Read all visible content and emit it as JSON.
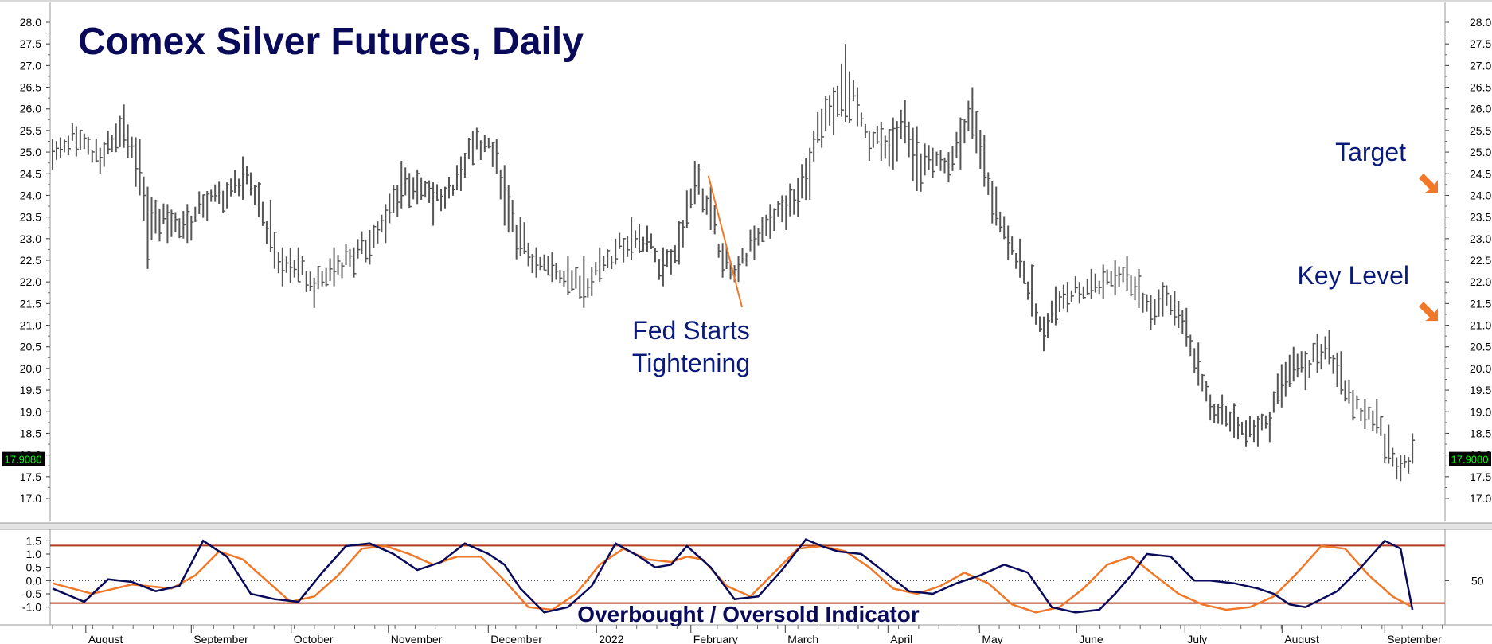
{
  "chart_data": [
    {
      "type": "ohlc",
      "title": "Comex Silver Futures, Daily",
      "ylim": [
        16.4,
        28.6
      ],
      "y_ticks": [
        "17.0",
        "17.5",
        "18.0",
        "18.5",
        "19.0",
        "19.5",
        "20.0",
        "20.5",
        "21.0",
        "21.5",
        "22.0",
        "22.5",
        "23.0",
        "23.5",
        "24.0",
        "24.5",
        "25.0",
        "25.5",
        "26.0",
        "26.5",
        "27.0",
        "27.5",
        "28.0"
      ],
      "y_tick_values": [
        17.0,
        17.5,
        18.0,
        18.5,
        19.0,
        19.5,
        20.0,
        20.5,
        21.0,
        21.5,
        22.0,
        22.5,
        23.0,
        23.5,
        24.0,
        24.5,
        25.0,
        25.5,
        26.0,
        26.5,
        27.0,
        27.5,
        28.0
      ],
      "last_price": "17.9080",
      "last_price_value": 17.908,
      "annotations": [
        {
          "text_lines": [
            "Fed Starts",
            "Tightening"
          ],
          "points_to": {
            "bar_index": 161,
            "price": 24.6
          }
        },
        {
          "text": "Target",
          "price": 24.1
        },
        {
          "text": "Key Level",
          "price": 21.1
        }
      ],
      "colors": {
        "bars": "#555555",
        "title": "#0a0a5a",
        "annotation": "#0a1a7a",
        "arrow": "#f07828",
        "price_flag_bg": "#000000",
        "price_flag_text": "#00ff00"
      },
      "series": [
        {
          "x": 0,
          "high": 25.3,
          "low": 24.6,
          "close": 24.9
        },
        {
          "x": 6,
          "high": 25.6,
          "low": 24.9,
          "close": 25.4
        },
        {
          "x": 12,
          "high": 25.1,
          "low": 24.5,
          "close": 24.9
        },
        {
          "x": 18,
          "high": 26.1,
          "low": 25.1,
          "close": 25.6
        },
        {
          "x": 22,
          "high": 25.3,
          "low": 24.0,
          "close": 24.3
        },
        {
          "x": 24,
          "high": 24.2,
          "low": 22.3,
          "close": 23.5
        },
        {
          "x": 29,
          "high": 23.8,
          "low": 22.9,
          "close": 23.4
        },
        {
          "x": 34,
          "high": 23.8,
          "low": 22.9,
          "close": 23.3
        },
        {
          "x": 39,
          "high": 24.1,
          "low": 23.4,
          "close": 23.9
        },
        {
          "x": 44,
          "high": 24.3,
          "low": 23.7,
          "close": 24.0
        },
        {
          "x": 48,
          "high": 24.9,
          "low": 23.9,
          "close": 24.4
        },
        {
          "x": 52,
          "high": 24.3,
          "low": 23.5,
          "close": 23.9
        },
        {
          "x": 55,
          "high": 23.9,
          "low": 22.7,
          "close": 23.0
        },
        {
          "x": 58,
          "high": 22.8,
          "low": 21.9,
          "close": 22.3
        },
        {
          "x": 62,
          "high": 22.8,
          "low": 22.0,
          "close": 22.4
        },
        {
          "x": 66,
          "high": 22.1,
          "low": 21.4,
          "close": 21.8
        },
        {
          "x": 71,
          "high": 22.8,
          "low": 21.9,
          "close": 22.4
        },
        {
          "x": 76,
          "high": 22.8,
          "low": 22.1,
          "close": 22.6
        },
        {
          "x": 80,
          "high": 23.2,
          "low": 22.4,
          "close": 22.9
        },
        {
          "x": 84,
          "high": 23.8,
          "low": 22.9,
          "close": 23.4
        },
        {
          "x": 88,
          "high": 24.8,
          "low": 23.7,
          "close": 24.3
        },
        {
          "x": 92,
          "high": 24.6,
          "low": 23.8,
          "close": 24.2
        },
        {
          "x": 96,
          "high": 24.3,
          "low": 23.3,
          "close": 23.9
        },
        {
          "x": 99,
          "high": 24.2,
          "low": 23.7,
          "close": 24.0
        },
        {
          "x": 103,
          "high": 24.9,
          "low": 24.1,
          "close": 24.6
        },
        {
          "x": 106,
          "high": 25.5,
          "low": 24.7,
          "close": 25.2
        },
        {
          "x": 109,
          "high": 25.4,
          "low": 25.0,
          "close": 25.2
        },
        {
          "x": 112,
          "high": 25.3,
          "low": 24.5,
          "close": 24.8
        },
        {
          "x": 114,
          "high": 24.7,
          "low": 23.3,
          "close": 23.6
        },
        {
          "x": 118,
          "high": 23.5,
          "low": 22.6,
          "close": 23.0
        },
        {
          "x": 122,
          "high": 22.8,
          "low": 22.1,
          "close": 22.4
        },
        {
          "x": 126,
          "high": 22.7,
          "low": 22.0,
          "close": 22.3
        },
        {
          "x": 130,
          "high": 22.6,
          "low": 21.7,
          "close": 22.1
        },
        {
          "x": 134,
          "high": 22.6,
          "low": 21.4,
          "close": 21.9
        },
        {
          "x": 138,
          "high": 22.8,
          "low": 22.0,
          "close": 22.4
        },
        {
          "x": 142,
          "high": 23.0,
          "low": 22.4,
          "close": 22.7
        },
        {
          "x": 146,
          "high": 23.5,
          "low": 22.5,
          "close": 23.0
        },
        {
          "x": 150,
          "high": 23.3,
          "low": 22.7,
          "close": 23.0
        },
        {
          "x": 154,
          "high": 22.8,
          "low": 21.9,
          "close": 22.2
        },
        {
          "x": 158,
          "high": 23.4,
          "low": 22.4,
          "close": 22.9
        },
        {
          "x": 162,
          "high": 24.8,
          "low": 23.8,
          "close": 24.4
        },
        {
          "x": 166,
          "high": 24.2,
          "low": 23.2,
          "close": 23.6
        },
        {
          "x": 169,
          "high": 22.9,
          "low": 22.1,
          "close": 22.5
        },
        {
          "x": 173,
          "high": 22.6,
          "low": 22.0,
          "close": 22.3
        },
        {
          "x": 177,
          "high": 23.3,
          "low": 22.5,
          "close": 23.0
        },
        {
          "x": 181,
          "high": 23.8,
          "low": 23.0,
          "close": 23.5
        },
        {
          "x": 185,
          "high": 24.0,
          "low": 23.2,
          "close": 23.7
        },
        {
          "x": 188,
          "high": 24.4,
          "low": 23.5,
          "close": 24.0
        },
        {
          "x": 191,
          "high": 25.1,
          "low": 23.9,
          "close": 24.8
        },
        {
          "x": 194,
          "high": 26.0,
          "low": 25.1,
          "close": 25.7
        },
        {
          "x": 197,
          "high": 26.5,
          "low": 25.4,
          "close": 26.0
        },
        {
          "x": 200,
          "high": 27.5,
          "low": 25.7,
          "close": 26.5
        },
        {
          "x": 203,
          "high": 26.5,
          "low": 25.6,
          "close": 26.2
        },
        {
          "x": 206,
          "high": 25.5,
          "low": 24.8,
          "close": 25.2
        },
        {
          "x": 209,
          "high": 25.7,
          "low": 24.8,
          "close": 25.3
        },
        {
          "x": 212,
          "high": 25.8,
          "low": 24.6,
          "close": 25.2
        },
        {
          "x": 215,
          "high": 26.2,
          "low": 25.2,
          "close": 25.8
        },
        {
          "x": 218,
          "high": 25.6,
          "low": 24.1,
          "close": 24.6
        },
        {
          "x": 222,
          "high": 25.1,
          "low": 24.4,
          "close": 24.8
        },
        {
          "x": 226,
          "high": 25.0,
          "low": 24.3,
          "close": 24.6
        },
        {
          "x": 229,
          "high": 25.8,
          "low": 24.6,
          "close": 25.4
        },
        {
          "x": 232,
          "high": 26.5,
          "low": 25.3,
          "close": 26.0
        },
        {
          "x": 235,
          "high": 25.4,
          "low": 24.2,
          "close": 24.5
        },
        {
          "x": 238,
          "high": 24.2,
          "low": 23.3,
          "close": 23.6
        },
        {
          "x": 241,
          "high": 23.3,
          "low": 22.5,
          "close": 22.9
        },
        {
          "x": 244,
          "high": 23.0,
          "low": 22.1,
          "close": 22.5
        },
        {
          "x": 247,
          "high": 22.4,
          "low": 21.2,
          "close": 21.6
        },
        {
          "x": 250,
          "high": 21.2,
          "low": 20.4,
          "close": 20.9
        },
        {
          "x": 253,
          "high": 21.9,
          "low": 21.0,
          "close": 21.5
        },
        {
          "x": 256,
          "high": 22.0,
          "low": 21.3,
          "close": 21.7
        },
        {
          "x": 259,
          "high": 22.0,
          "low": 21.5,
          "close": 21.8
        },
        {
          "x": 262,
          "high": 22.3,
          "low": 21.6,
          "close": 22.0
        },
        {
          "x": 265,
          "high": 22.4,
          "low": 21.6,
          "close": 22.0
        },
        {
          "x": 268,
          "high": 22.5,
          "low": 21.7,
          "close": 22.2
        },
        {
          "x": 271,
          "high": 22.6,
          "low": 21.8,
          "close": 22.2
        },
        {
          "x": 274,
          "high": 22.3,
          "low": 21.4,
          "close": 21.7
        },
        {
          "x": 277,
          "high": 21.7,
          "low": 20.9,
          "close": 21.3
        },
        {
          "x": 280,
          "high": 22.0,
          "low": 21.2,
          "close": 21.6
        },
        {
          "x": 283,
          "high": 21.8,
          "low": 21.0,
          "close": 21.4
        },
        {
          "x": 286,
          "high": 21.4,
          "low": 20.5,
          "close": 20.8
        },
        {
          "x": 289,
          "high": 20.6,
          "low": 19.6,
          "close": 19.9
        },
        {
          "x": 292,
          "high": 19.4,
          "low": 18.8,
          "close": 19.1
        },
        {
          "x": 295,
          "high": 19.4,
          "low": 18.7,
          "close": 19.0
        },
        {
          "x": 298,
          "high": 19.2,
          "low": 18.4,
          "close": 18.8
        },
        {
          "x": 301,
          "high": 18.8,
          "low": 18.2,
          "close": 18.5
        },
        {
          "x": 304,
          "high": 18.9,
          "low": 18.2,
          "close": 18.6
        },
        {
          "x": 307,
          "high": 19.0,
          "low": 18.3,
          "close": 18.7
        },
        {
          "x": 310,
          "high": 20.1,
          "low": 19.1,
          "close": 19.8
        },
        {
          "x": 313,
          "high": 20.5,
          "low": 19.7,
          "close": 20.1
        },
        {
          "x": 316,
          "high": 20.4,
          "low": 19.5,
          "close": 19.9
        },
        {
          "x": 319,
          "high": 20.8,
          "low": 19.9,
          "close": 20.4
        },
        {
          "x": 322,
          "high": 20.9,
          "low": 20.1,
          "close": 20.5
        },
        {
          "x": 325,
          "high": 20.4,
          "low": 19.4,
          "close": 19.8
        },
        {
          "x": 328,
          "high": 19.5,
          "low": 18.8,
          "close": 19.1
        },
        {
          "x": 331,
          "high": 19.3,
          "low": 18.6,
          "close": 19.0
        },
        {
          "x": 334,
          "high": 19.3,
          "low": 18.5,
          "close": 18.9
        },
        {
          "x": 337,
          "high": 18.7,
          "low": 17.8,
          "close": 18.1
        },
        {
          "x": 340,
          "high": 18.0,
          "low": 17.4,
          "close": 17.7
        },
        {
          "x": 343,
          "high": 18.5,
          "low": 17.8,
          "close": 17.9
        }
      ]
    },
    {
      "type": "line",
      "title": "Overbought / Oversold Indicator",
      "ylim": [
        -1.55,
        1.75
      ],
      "y_ticks": [
        "1.5",
        "1.0",
        "0.5",
        "0.0",
        "-0.5",
        "-1.0"
      ],
      "y_tick_values": [
        1.5,
        1.0,
        0.5,
        0.0,
        -0.5,
        -1.0
      ],
      "right_tick": {
        "label": "50",
        "value": 0.0
      },
      "overbought_line": 1.32,
      "oversold_line": -0.85,
      "colors": {
        "fast": "#0a0a5a",
        "slow": "#f07828",
        "bounds": "#b03a1a"
      },
      "series": [
        {
          "name": "fast",
          "x": [
            0,
            8,
            14,
            20,
            26,
            32,
            38,
            44,
            50,
            56,
            62,
            68,
            74,
            80,
            86,
            92,
            98,
            104,
            110,
            114,
            118,
            124,
            130,
            136,
            142,
            148,
            152,
            156,
            160,
            166,
            172,
            178,
            184,
            190,
            194,
            198,
            204,
            210,
            216,
            222,
            228,
            234,
            240,
            246,
            252,
            258,
            264,
            268,
            272,
            276,
            282,
            288,
            292,
            298,
            304,
            308,
            312,
            316,
            320,
            324,
            330,
            336,
            340,
            343
          ],
          "y": [
            -0.3,
            -0.8,
            0.05,
            -0.05,
            -0.4,
            -0.2,
            1.5,
            0.9,
            -0.5,
            -0.7,
            -0.8,
            0.3,
            1.3,
            1.4,
            1.0,
            0.4,
            0.7,
            1.4,
            1.0,
            0.6,
            -0.3,
            -1.2,
            -1.0,
            -0.2,
            1.4,
            0.9,
            0.5,
            0.6,
            1.3,
            0.5,
            -0.7,
            -0.6,
            0.4,
            1.55,
            1.3,
            1.1,
            1.0,
            0.3,
            -0.4,
            -0.5,
            -0.1,
            0.2,
            0.6,
            0.3,
            -1.0,
            -1.2,
            -1.1,
            -0.5,
            0.2,
            1.0,
            0.9,
            0.0,
            0.0,
            -0.1,
            -0.3,
            -0.5,
            -0.9,
            -1.0,
            -0.7,
            -0.4,
            0.5,
            1.5,
            1.2,
            -1.1
          ]
        },
        {
          "name": "slow",
          "x": [
            0,
            10,
            20,
            30,
            36,
            42,
            48,
            54,
            60,
            66,
            72,
            78,
            84,
            90,
            96,
            102,
            108,
            114,
            120,
            126,
            132,
            138,
            144,
            150,
            156,
            160,
            164,
            170,
            176,
            182,
            188,
            194,
            200,
            206,
            212,
            218,
            224,
            230,
            236,
            242,
            248,
            254,
            260,
            266,
            272,
            278,
            284,
            290,
            296,
            302,
            308,
            314,
            320,
            326,
            332,
            338,
            343
          ],
          "y": [
            -0.1,
            -0.5,
            -0.15,
            -0.3,
            0.2,
            1.1,
            0.8,
            0.0,
            -0.8,
            -0.6,
            0.2,
            1.2,
            1.3,
            1.0,
            0.6,
            0.9,
            0.9,
            0.0,
            -1.0,
            -1.1,
            -0.5,
            0.6,
            1.2,
            0.8,
            0.7,
            0.9,
            0.8,
            -0.2,
            -0.6,
            0.3,
            1.2,
            1.3,
            1.1,
            0.5,
            -0.3,
            -0.5,
            -0.2,
            0.3,
            -0.1,
            -0.9,
            -1.2,
            -1.0,
            -0.3,
            0.6,
            0.9,
            0.2,
            -0.5,
            -0.9,
            -1.1,
            -1.0,
            -0.6,
            0.3,
            1.3,
            1.2,
            0.2,
            -0.6,
            -1.0
          ]
        }
      ]
    }
  ],
  "x_axis": {
    "months": [
      {
        "label": "August",
        "x": 12
      },
      {
        "label": "September",
        "x": 50
      },
      {
        "label": "October",
        "x": 86
      },
      {
        "label": "November",
        "x": 121
      },
      {
        "label": "December",
        "x": 157
      },
      {
        "label": "2022",
        "x": 196
      },
      {
        "label": "February",
        "x": 230
      },
      {
        "label": "March",
        "x": 264
      },
      {
        "label": "April",
        "x": 301
      },
      {
        "label": "May",
        "x": 334
      },
      {
        "label": "June",
        "x": 369
      },
      {
        "label": "July",
        "x": 408
      },
      {
        "label": "August",
        "x": 443
      },
      {
        "label": "September",
        "x": 480
      }
    ]
  }
}
